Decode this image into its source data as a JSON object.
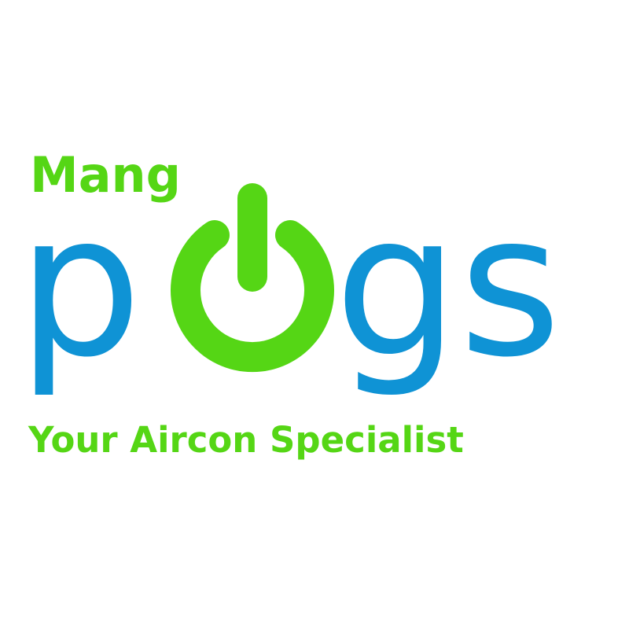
{
  "logo": {
    "prefix": "Mang",
    "name_first": "p",
    "name_last": "gs",
    "tagline": "Your Aircon Specialist",
    "power_icon": "power-icon",
    "colors": {
      "green": "#55d615",
      "blue": "#0f93d5",
      "background": "#ffffff"
    }
  }
}
